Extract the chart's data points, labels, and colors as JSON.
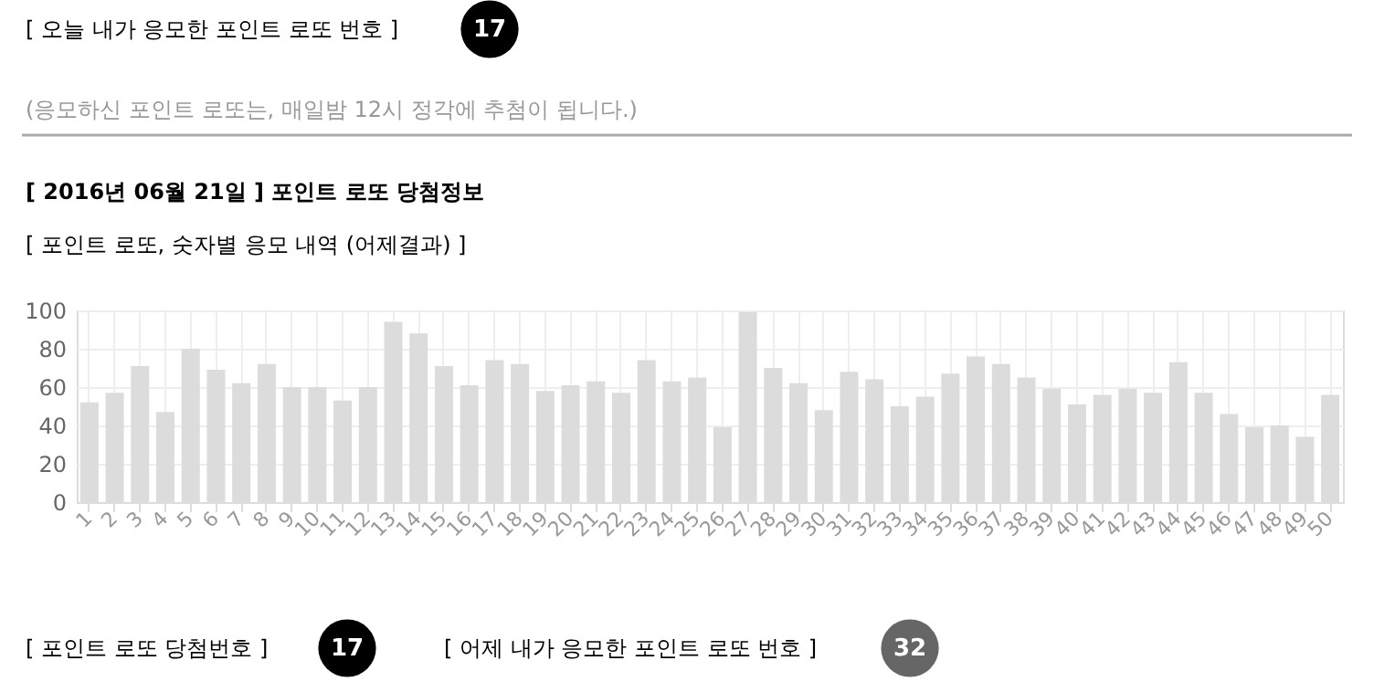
{
  "chart_data": {
    "type": "bar",
    "title": "[ 2016년 06월 21일 ] 포인트 로또 당첨정보",
    "subtitle": "[ 포인트 로또, 숫자별 응모 내역 (어제결과) ]",
    "categories": [
      "1",
      "2",
      "3",
      "4",
      "5",
      "6",
      "7",
      "8",
      "9",
      "10",
      "11",
      "12",
      "13",
      "14",
      "15",
      "16",
      "17",
      "18",
      "19",
      "20",
      "21",
      "22",
      "23",
      "24",
      "25",
      "26",
      "27",
      "28",
      "29",
      "30",
      "31",
      "32",
      "33",
      "34",
      "35",
      "36",
      "37",
      "38",
      "39",
      "40",
      "41",
      "42",
      "43",
      "44",
      "45",
      "46",
      "47",
      "48",
      "49",
      "50"
    ],
    "values": [
      52,
      57,
      71,
      47,
      80,
      69,
      62,
      72,
      60,
      60,
      53,
      60,
      94,
      88,
      71,
      61,
      74,
      72,
      58,
      61,
      63,
      57,
      74,
      63,
      65,
      39,
      99,
      70,
      62,
      48,
      68,
      64,
      50,
      55,
      67,
      76,
      72,
      65,
      59,
      51,
      56,
      59,
      57,
      73,
      57,
      46,
      39,
      40,
      34,
      56
    ],
    "color": "#dcdcdc",
    "ylim": [
      0,
      100
    ],
    "yticks": [
      0,
      20,
      40,
      60,
      80,
      100
    ],
    "grid": true,
    "annotations": [
      "[ 오늘 내가 응모한 포인트 로또 번호 ]",
      "17",
      "(응모하신 포인트 로또는, 매일밤 12시 정각에 추첨이 됩니다.)",
      "[ 포인트 로또 당첨번호 ]",
      "17",
      "[ 어제 내가 응모한 포인트 로또 번호 ]",
      "32"
    ]
  }
}
